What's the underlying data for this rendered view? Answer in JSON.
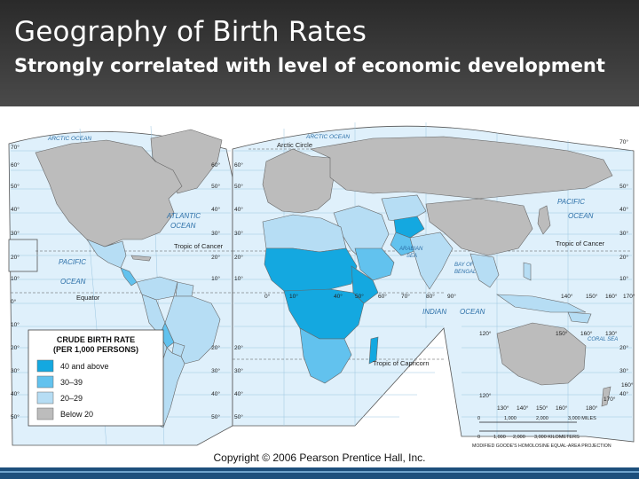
{
  "slide": {
    "title": "Geography of Birth Rates",
    "subtitle": "Strongly correlated with level of economic development",
    "copyright": "Copyright © 2006 Pearson Prentice Hall, Inc."
  },
  "map": {
    "oceans": {
      "arctic_w": "ARCTIC OCEAN",
      "arctic_e": "ARCTIC OCEAN",
      "atlantic_1": "ATLANTIC",
      "atlantic_2": "OCEAN",
      "pacific_w1": "PACIFIC",
      "pacific_w2": "OCEAN",
      "pacific_e1": "PACIFIC",
      "pacific_e2": "OCEAN",
      "indian": "INDIAN",
      "indian_2": "OCEAN",
      "arabian_1": "ARABIAN",
      "arabian_2": "SEA",
      "bengal_1": "BAY OF",
      "bengal_2": "BENGAL",
      "coral": "CORAL SEA"
    },
    "lines": {
      "arctic_circle": "Arctic Circle",
      "cancer_w": "Tropic of Cancer",
      "cancer_e": "Tropic of Cancer",
      "equator": "Equator",
      "capricorn": "Tropic of Capricorn"
    },
    "lat_left": [
      "70°",
      "60°",
      "50°",
      "40°",
      "30°",
      "20°",
      "10°",
      "0°",
      "10°",
      "20°",
      "30°",
      "40°",
      "50°"
    ],
    "lat_mid_l": [
      "60°",
      "50°",
      "40°",
      "30°",
      "20°",
      "10°",
      "20°",
      "30°",
      "40°",
      "50°"
    ],
    "lat_mid_r": [
      "60°",
      "50°",
      "40°",
      "30°",
      "20°",
      "10°",
      "20°",
      "30°",
      "40°",
      "50°"
    ],
    "lat_right": [
      "70°",
      "50°",
      "40°",
      "30°",
      "20°",
      "10°",
      "20°",
      "30°",
      "40°"
    ],
    "lon_labels": [
      "0°",
      "10°",
      "40°",
      "50°",
      "60°",
      "70°",
      "80°",
      "90°",
      "140°",
      "150°",
      "160°",
      "170°",
      "120°",
      "150°",
      "160°",
      "130°",
      "120°",
      "130°",
      "140°",
      "150°",
      "160°",
      "180°",
      "170°",
      "160°"
    ],
    "scale": {
      "miles": [
        "0",
        "1,000",
        "2,000",
        "3,000 MILES"
      ],
      "km": [
        "0",
        "1,000",
        "2,000",
        "3,000 KILOMETERS"
      ],
      "projection": "MODIFIED GOODE'S HOMOLOSINE EQUAL-AREA PROJECTION"
    }
  },
  "legend": {
    "title_line1": "CRUDE BIRTH RATE",
    "title_line2": "(PER 1,000 PERSONS)",
    "classes": [
      {
        "label": "40 and above",
        "color": "#14a8e0"
      },
      {
        "label": "30–39",
        "color": "#62c2ee"
      },
      {
        "label": "20–29",
        "color": "#b6ddf4"
      },
      {
        "label": "Below 20",
        "color": "#bcbcbc"
      }
    ]
  },
  "colors": {
    "ocean": "#dff0fb",
    "header_bg": "#3a3a3a",
    "accent_bar": "#1d4f7c"
  }
}
